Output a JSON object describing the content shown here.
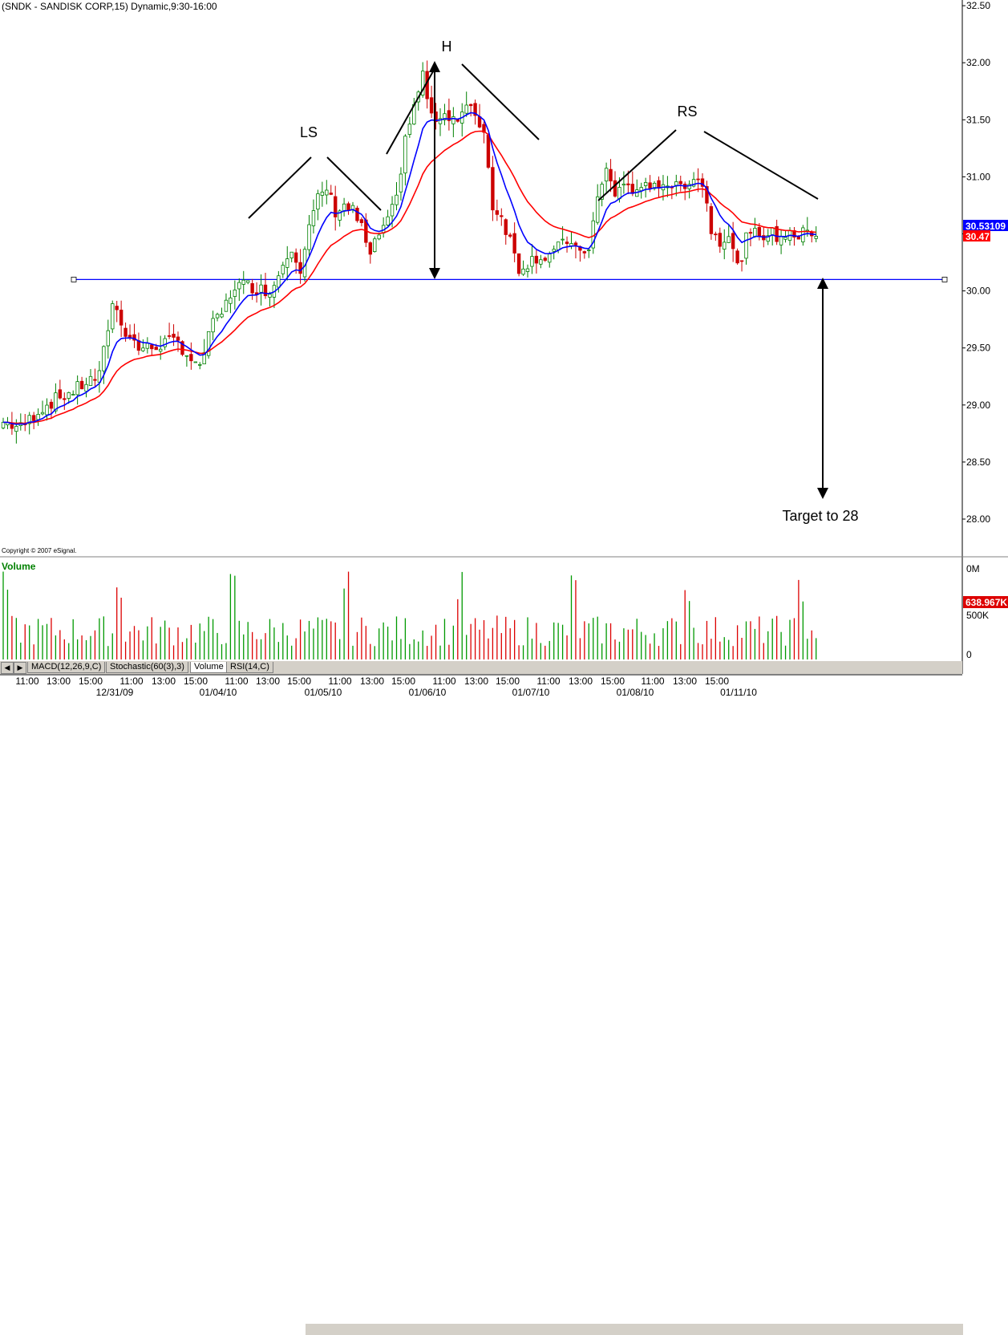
{
  "header": {
    "title": "(SNDK - SANDISK CORP,15) Dynamic,9:30-16:00",
    "copyright": "Copyright © 2007 eSignal."
  },
  "volume_panel": {
    "label": "Volume",
    "axis_labels": [
      "0M",
      "500K",
      "0"
    ],
    "last_value": "638.967K"
  },
  "price_badges": {
    "blue": "30.53109",
    "red": "30.47"
  },
  "tabs": [
    {
      "label": "MACD(12,26,9,C)",
      "active": false
    },
    {
      "label": "Stochastic(60(3),3)",
      "active": false
    },
    {
      "label": "Volume",
      "active": true
    },
    {
      "label": "RSI(14,C)",
      "active": false
    }
  ],
  "colors": {
    "up": "#008000",
    "down": "#cc0000",
    "ema_fast": "#0000ff",
    "ema_slow": "#ff0000",
    "neckline": "#0000ff",
    "vol_up": "#009900",
    "vol_down": "#dd0000"
  },
  "chart_data": {
    "type": "candlestick",
    "title": "(SNDK - SANDISK CORP,15) Dynamic,9:30-16:00",
    "ylim": [
      27.75,
      32.6
    ],
    "yticks": [
      "28.00",
      "28.50",
      "29.00",
      "29.50",
      "30.00",
      "30.50",
      "31.00",
      "31.50",
      "32.00",
      "32.50"
    ],
    "x_time_labels": [
      "11:00",
      "13:00",
      "15:00",
      "11:00",
      "13:00",
      "15:00",
      "11:00",
      "13:00",
      "15:00",
      "11:00",
      "13:00",
      "15:00",
      "11:00",
      "13:00",
      "15:00",
      "11:00",
      "13:00",
      "15:00",
      "11:00",
      "13:00",
      "15:00"
    ],
    "x_date_labels": [
      "12/31/09",
      "01/04/10",
      "01/05/10",
      "01/06/10",
      "01/07/10",
      "01/08/10",
      "01/11/10"
    ],
    "price_points": [
      [
        0,
        28.85
      ],
      [
        4,
        28.8
      ],
      [
        8,
        28.95
      ],
      [
        12,
        29.05
      ],
      [
        16,
        29.12
      ],
      [
        19,
        29.2
      ],
      [
        22,
        29.25
      ],
      [
        25,
        29.9
      ],
      [
        28,
        29.65
      ],
      [
        31,
        29.5
      ],
      [
        34,
        29.5
      ],
      [
        37,
        29.55
      ],
      [
        40,
        29.55
      ],
      [
        43,
        29.4
      ],
      [
        45,
        29.3
      ],
      [
        47,
        29.65
      ],
      [
        50,
        29.8
      ],
      [
        53,
        30.05
      ],
      [
        56,
        30.05
      ],
      [
        60,
        30.0
      ],
      [
        62,
        30.05
      ],
      [
        64,
        30.25
      ],
      [
        66,
        30.4
      ],
      [
        68,
        30.2
      ],
      [
        70,
        30.55
      ],
      [
        72,
        30.8
      ],
      [
        74,
        30.9
      ],
      [
        76,
        30.7
      ],
      [
        78,
        30.75
      ],
      [
        80,
        30.7
      ],
      [
        82,
        30.55
      ],
      [
        84,
        30.3
      ],
      [
        86,
        30.5
      ],
      [
        88,
        30.6
      ],
      [
        90,
        30.8
      ],
      [
        92,
        31.35
      ],
      [
        94,
        31.6
      ],
      [
        96,
        31.9
      ],
      [
        98,
        31.5
      ],
      [
        100,
        31.55
      ],
      [
        102,
        31.55
      ],
      [
        104,
        31.5
      ],
      [
        106,
        31.6
      ],
      [
        108,
        31.55
      ],
      [
        110,
        31.4
      ],
      [
        112,
        30.75
      ],
      [
        114,
        30.65
      ],
      [
        116,
        30.45
      ],
      [
        118,
        30.2
      ],
      [
        120,
        30.25
      ],
      [
        122,
        30.3
      ],
      [
        124,
        30.3
      ],
      [
        126,
        30.35
      ],
      [
        128,
        30.4
      ],
      [
        130,
        30.45
      ],
      [
        132,
        30.3
      ],
      [
        134,
        30.4
      ],
      [
        136,
        30.8
      ],
      [
        138,
        31.05
      ],
      [
        140,
        30.85
      ],
      [
        142,
        30.95
      ],
      [
        144,
        30.85
      ],
      [
        146,
        30.95
      ],
      [
        148,
        30.85
      ],
      [
        150,
        30.95
      ],
      [
        152,
        30.95
      ],
      [
        154,
        30.9
      ],
      [
        156,
        30.95
      ],
      [
        158,
        31.0
      ],
      [
        160,
        30.95
      ],
      [
        162,
        30.55
      ],
      [
        164,
        30.45
      ],
      [
        166,
        30.5
      ],
      [
        168,
        30.2
      ],
      [
        170,
        30.45
      ],
      [
        172,
        30.5
      ],
      [
        174,
        30.5
      ],
      [
        176,
        30.5
      ],
      [
        178,
        30.45
      ],
      [
        180,
        30.55
      ],
      [
        182,
        30.45
      ],
      [
        184,
        30.55
      ],
      [
        186,
        30.5
      ]
    ],
    "candle_count": 187,
    "ema_fast": "EMA (blue)",
    "ema_slow": "EMA (red)",
    "neckline": 30.1,
    "annotations": [
      {
        "label": "LS"
      },
      {
        "label": "H"
      },
      {
        "label": "RS"
      },
      {
        "label": "Target to 28"
      }
    ]
  }
}
